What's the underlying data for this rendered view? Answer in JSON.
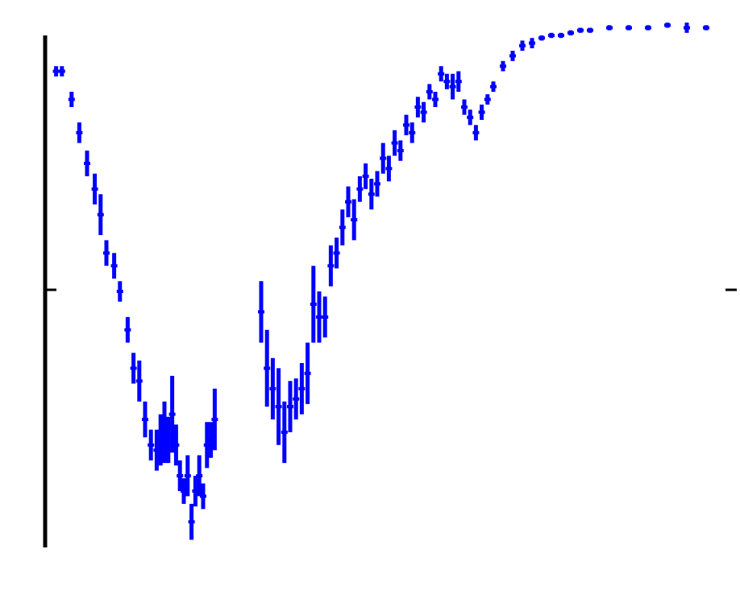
{
  "chart_data": {
    "type": "line",
    "title": "",
    "xlabel": "",
    "ylabel": "",
    "series_color": "#0000ff",
    "grid": false,
    "xlim": [
      0,
      3.5
    ],
    "ylim": [
      -1,
      1
    ],
    "x_ticks": [],
    "y_ticks": [],
    "x": [
      0.04,
      0.07,
      0.12,
      0.16,
      0.2,
      0.24,
      0.27,
      0.3,
      0.34,
      0.37,
      0.41,
      0.44,
      0.47,
      0.5,
      0.53,
      0.56,
      0.58,
      0.6,
      0.62,
      0.64,
      0.66,
      0.68,
      0.7,
      0.72,
      0.74,
      0.76,
      0.78,
      0.8,
      0.82,
      0.84,
      0.86,
      1.1,
      1.13,
      1.16,
      1.19,
      1.22,
      1.25,
      1.28,
      1.31,
      1.34,
      1.37,
      1.4,
      1.43,
      1.46,
      1.49,
      1.52,
      1.55,
      1.58,
      1.61,
      1.64,
      1.67,
      1.7,
      1.73,
      1.76,
      1.79,
      1.82,
      1.85,
      1.88,
      1.91,
      1.94,
      1.97,
      2.0,
      2.03,
      2.06,
      2.09,
      2.12,
      2.15,
      2.18,
      2.21,
      2.24,
      2.27,
      2.3,
      2.35,
      2.4,
      2.45,
      2.5,
      2.55,
      2.6,
      2.65,
      2.7,
      2.75,
      2.8,
      2.9,
      3.0,
      3.1,
      3.2,
      3.3,
      3.4
    ],
    "y": [
      0.86,
      0.86,
      0.75,
      0.62,
      0.5,
      0.4,
      0.3,
      0.15,
      0.1,
      0.0,
      -0.15,
      -0.3,
      -0.35,
      -0.5,
      -0.6,
      -0.62,
      -0.58,
      -0.55,
      -0.58,
      -0.48,
      -0.6,
      -0.72,
      -0.78,
      -0.72,
      -0.9,
      -0.78,
      -0.72,
      -0.8,
      -0.6,
      -0.58,
      -0.5,
      -0.08,
      -0.3,
      -0.38,
      -0.45,
      -0.55,
      -0.45,
      -0.42,
      -0.38,
      -0.32,
      -0.05,
      -0.1,
      -0.1,
      0.1,
      0.15,
      0.25,
      0.35,
      0.28,
      0.4,
      0.45,
      0.38,
      0.42,
      0.52,
      0.48,
      0.58,
      0.55,
      0.65,
      0.62,
      0.72,
      0.7,
      0.78,
      0.75,
      0.85,
      0.82,
      0.8,
      0.82,
      0.72,
      0.68,
      0.62,
      0.7,
      0.75,
      0.8,
      0.88,
      0.92,
      0.96,
      0.97,
      0.99,
      1.0,
      1.0,
      1.01,
      1.02,
      1.02,
      1.03,
      1.03,
      1.03,
      1.04,
      1.03,
      1.03
    ],
    "err": [
      0.02,
      0.02,
      0.03,
      0.04,
      0.05,
      0.06,
      0.08,
      0.05,
      0.05,
      0.04,
      0.05,
      0.06,
      0.08,
      0.07,
      0.06,
      0.08,
      0.1,
      0.12,
      0.09,
      0.15,
      0.08,
      0.06,
      0.05,
      0.08,
      0.07,
      0.06,
      0.08,
      0.05,
      0.09,
      0.07,
      0.12,
      0.12,
      0.15,
      0.12,
      0.15,
      0.12,
      0.1,
      0.08,
      0.1,
      0.12,
      0.15,
      0.1,
      0.08,
      0.08,
      0.06,
      0.07,
      0.06,
      0.08,
      0.05,
      0.05,
      0.06,
      0.05,
      0.06,
      0.05,
      0.05,
      0.04,
      0.04,
      0.04,
      0.04,
      0.04,
      0.03,
      0.03,
      0.03,
      0.03,
      0.05,
      0.04,
      0.03,
      0.03,
      0.03,
      0.03,
      0.02,
      0.02,
      0.02,
      0.02,
      0.02,
      0.02,
      0.01,
      0.01,
      0.01,
      0.01,
      0.01,
      0.01,
      0.01,
      0.01,
      0.01,
      0.01,
      0.02,
      0.01
    ]
  }
}
